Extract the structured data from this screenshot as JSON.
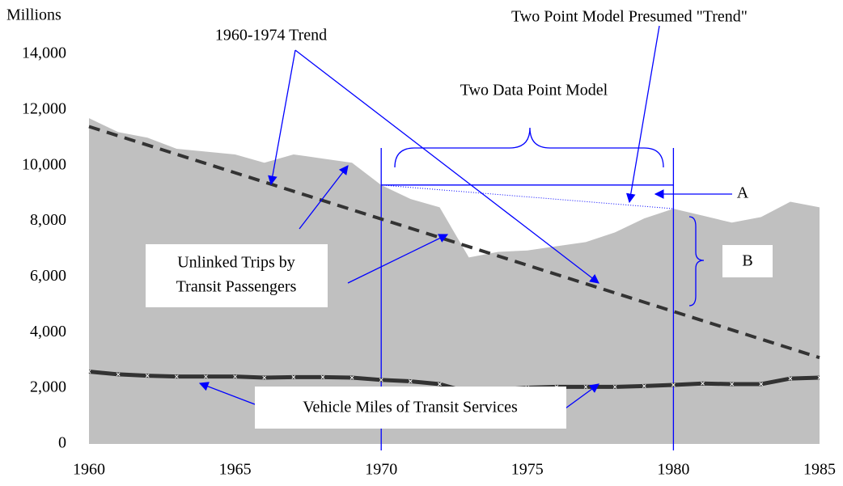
{
  "chart_data": {
    "type": "area",
    "y_axis_label": "Millions",
    "x": [
      1960,
      1961,
      1962,
      1963,
      1964,
      1965,
      1966,
      1967,
      1968,
      1969,
      1970,
      1971,
      1972,
      1973,
      1974,
      1975,
      1976,
      1977,
      1978,
      1979,
      1980,
      1981,
      1982,
      1983,
      1984,
      1985
    ],
    "series": [
      {
        "name": "Unlinked Trips by Transit Passengers",
        "color": "#c0c0c0",
        "values": [
          11700,
          11200,
          11000,
          10600,
          10500,
          10400,
          10100,
          10400,
          10250,
          10100,
          9300,
          8800,
          8500,
          6700,
          6900,
          6950,
          7100,
          7250,
          7600,
          8100,
          8450,
          8200,
          7950,
          8150,
          8700,
          8500
        ]
      },
      {
        "name": "1960-1974 Trend",
        "color": "#333333",
        "x": [
          1960,
          1985
        ],
        "values": [
          11400,
          3100
        ]
      },
      {
        "name": "Vehicle Miles of Transit Services",
        "color": "#333333",
        "values": [
          2600,
          2500,
          2450,
          2420,
          2420,
          2420,
          2380,
          2400,
          2400,
          2380,
          2300,
          2250,
          2150,
          1850,
          1950,
          2020,
          2050,
          2050,
          2050,
          2080,
          2120,
          2170,
          2150,
          2150,
          2350,
          2380
        ]
      }
    ],
    "annotations": {
      "trend": "1960-1974 Trend",
      "two_point_trend": "Two Point Model Presumed \"Trend\"",
      "two_point_model": "Two Data Point Model",
      "a": "A",
      "b": "B",
      "unlinked": [
        "Unlinked Trips by",
        "Transit Passengers"
      ],
      "vehicle": "Vehicle Miles of Transit Services"
    },
    "xlim": [
      1960,
      1985
    ],
    "xticks": [
      1960,
      1965,
      1970,
      1975,
      1980,
      1985
    ],
    "ylim": [
      0,
      14000
    ],
    "yticks": [
      0,
      {
        "value": 2000,
        "label": "2,000"
      },
      {
        "value": 4000,
        "label": "4,000"
      },
      {
        "value": 6000,
        "label": "6,000"
      },
      {
        "value": 8000,
        "label": "8,000"
      },
      {
        "value": 10000,
        "label": "10,000"
      },
      {
        "value": 12000,
        "label": "12,000"
      },
      {
        "value": 14000,
        "label": "14,000"
      }
    ],
    "model_years": [
      1970,
      1980
    ]
  }
}
